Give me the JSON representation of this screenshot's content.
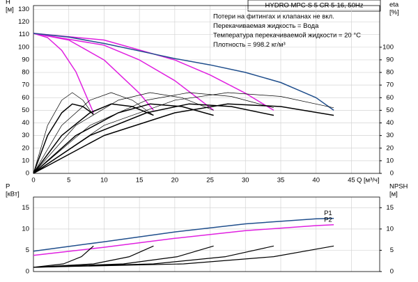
{
  "chart_data": [
    {
      "type": "line",
      "title": "HYDRO MPC-S 5 CR 5-16, 50Hz",
      "annotations": [
        "Потери на фитингах и клапанах не вкл.",
        "Перекачиваемая жидкость = Вода",
        "Температура перекачиваемой жидкости = 20 °C",
        "Плотность = 998.2 кг/м³"
      ],
      "ylabel": [
        "H",
        "[м]"
      ],
      "y2label": [
        "eta",
        "[%]"
      ],
      "xlabel": "Q [м³/ч]",
      "xlim": [
        0,
        49
      ],
      "xticks": [
        0,
        5,
        10,
        15,
        20,
        25,
        30,
        35,
        40,
        45
      ],
      "ylim": [
        0,
        133
      ],
      "yticks": [
        0,
        10,
        20,
        30,
        40,
        50,
        60,
        70,
        80,
        90,
        100,
        110,
        120,
        130
      ],
      "y2lim": [
        0,
        133
      ],
      "y2ticks": [
        0,
        10,
        20,
        30,
        40,
        50,
        60,
        70,
        80,
        90,
        100
      ],
      "grid": true,
      "series": [
        {
          "color": "#e020e0",
          "width": 1.5,
          "x": [
            0,
            2,
            4,
            6,
            8.5
          ],
          "values": [
            111,
            107.6,
            97.5,
            80.6,
            48
          ]
        },
        {
          "color": "#e020e0",
          "width": 1.5,
          "x": [
            0,
            5,
            10,
            15,
            17
          ],
          "values": [
            111,
            105.7,
            89.9,
            63.5,
            50
          ]
        },
        {
          "color": "#e020e0",
          "width": 1.5,
          "x": [
            0,
            10,
            15,
            20,
            25.5
          ],
          "values": [
            111,
            101.6,
            89.9,
            73.5,
            50
          ]
        },
        {
          "color": "#e020e0",
          "width": 1.5,
          "x": [
            0,
            10,
            20,
            25,
            30,
            34
          ],
          "values": [
            111,
            105.7,
            89.9,
            78,
            63.5,
            50
          ]
        },
        {
          "color": "#1f4e8c",
          "width": 1.5,
          "x": [
            0,
            5,
            10,
            15,
            20,
            25,
            30,
            35,
            40,
            42.5
          ],
          "values": [
            111,
            108,
            103,
            97,
            91,
            86,
            80,
            72,
            60,
            50
          ]
        },
        {
          "color": "#000000",
          "width": 0.7,
          "axis": "y2",
          "x": [
            0,
            2,
            4,
            5.5,
            7,
            8.5
          ],
          "values": [
            0,
            38,
            58,
            64,
            58,
            46
          ]
        },
        {
          "color": "#000000",
          "width": 0.7,
          "axis": "y2",
          "x": [
            0,
            4,
            8,
            11,
            14,
            17
          ],
          "values": [
            0,
            38,
            58,
            64,
            58,
            46
          ]
        },
        {
          "color": "#000000",
          "width": 0.7,
          "axis": "y2",
          "x": [
            0,
            6,
            12,
            16.5,
            21,
            25.5
          ],
          "values": [
            0,
            38,
            58,
            64,
            60,
            50
          ]
        },
        {
          "color": "#000000",
          "width": 0.7,
          "axis": "y2",
          "x": [
            0,
            8,
            16,
            22,
            28,
            34
          ],
          "values": [
            0,
            38,
            58,
            64,
            61,
            52
          ]
        },
        {
          "color": "#000000",
          "width": 0.7,
          "axis": "y2",
          "x": [
            0,
            10,
            20,
            27.5,
            35,
            42.5
          ],
          "values": [
            0,
            38,
            58,
            64,
            61,
            52
          ]
        },
        {
          "color": "#000000",
          "width": 1.5,
          "axis": "y2",
          "x": [
            0,
            2,
            4,
            5.5,
            7,
            8.5
          ],
          "values": [
            0,
            30,
            48,
            55,
            53,
            47
          ]
        },
        {
          "color": "#000000",
          "width": 1.5,
          "axis": "y2",
          "x": [
            0,
            4,
            8,
            11,
            14,
            17
          ],
          "values": [
            0,
            30,
            48,
            55,
            53,
            46
          ]
        },
        {
          "color": "#000000",
          "width": 1.5,
          "axis": "y2",
          "x": [
            0,
            6,
            12,
            16.5,
            21,
            25.5
          ],
          "values": [
            0,
            30,
            48,
            55,
            53,
            46
          ]
        },
        {
          "color": "#000000",
          "width": 1.5,
          "axis": "y2",
          "x": [
            0,
            8,
            16,
            22,
            28,
            34
          ],
          "values": [
            0,
            30,
            48,
            55,
            53,
            46
          ]
        },
        {
          "color": "#000000",
          "width": 1.5,
          "axis": "y2",
          "x": [
            0,
            10,
            20,
            27.5,
            35,
            42.5
          ],
          "values": [
            0,
            30,
            48,
            55,
            53,
            46
          ]
        }
      ]
    },
    {
      "type": "line",
      "ylabel": [
        "P",
        "[кВт]"
      ],
      "y2label": [
        "NPSH",
        "[м]"
      ],
      "xlim": [
        0,
        49
      ],
      "xticks": [
        0,
        5,
        10,
        15,
        20,
        25,
        30,
        35,
        40,
        45
      ],
      "ylim": [
        0,
        17.5
      ],
      "yticks": [
        0,
        5,
        10,
        15
      ],
      "y2lim": [
        0,
        17.5
      ],
      "y2ticks": [
        0,
        5,
        10,
        15
      ],
      "grid": true,
      "series": [
        {
          "name": "P1",
          "color": "#1f4e8c",
          "width": 1.5,
          "x": [
            0,
            10,
            20,
            30,
            40,
            42.5
          ],
          "values": [
            4.8,
            7,
            9.3,
            11.2,
            12.4,
            12.5
          ]
        },
        {
          "name": "P2",
          "color": "#e020e0",
          "width": 1.5,
          "x": [
            0,
            10,
            20,
            30,
            40,
            42.5
          ],
          "values": [
            3.8,
            5.7,
            7.8,
            9.6,
            10.8,
            11
          ]
        },
        {
          "color": "#000000",
          "width": 1.2,
          "axis": "y2",
          "x": [
            0,
            4.25,
            6.8,
            8.5
          ],
          "values": [
            1,
            1.8,
            3.5,
            6
          ]
        },
        {
          "color": "#000000",
          "width": 1.2,
          "axis": "y2",
          "x": [
            0,
            8.5,
            13.6,
            17
          ],
          "values": [
            1,
            1.8,
            3.5,
            6
          ]
        },
        {
          "color": "#000000",
          "width": 1.2,
          "axis": "y2",
          "x": [
            0,
            12.75,
            20.4,
            25.5
          ],
          "values": [
            1,
            1.8,
            3.5,
            6
          ]
        },
        {
          "color": "#000000",
          "width": 1.2,
          "axis": "y2",
          "x": [
            0,
            17,
            27.2,
            34
          ],
          "values": [
            1,
            1.8,
            3.5,
            6
          ]
        },
        {
          "color": "#000000",
          "width": 1.2,
          "axis": "y2",
          "x": [
            0,
            21.25,
            34,
            42.5
          ],
          "values": [
            1,
            1.8,
            3.5,
            6
          ]
        }
      ]
    }
  ]
}
